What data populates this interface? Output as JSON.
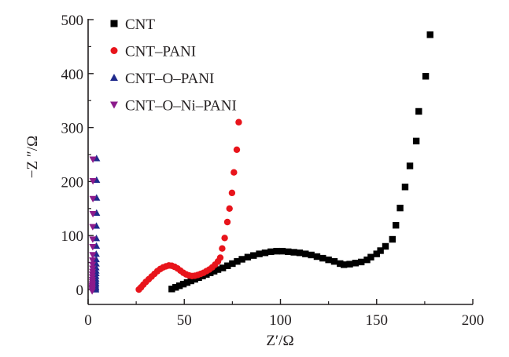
{
  "chart_data": {
    "type": "scatter",
    "title": "",
    "xlabel": "Z′/Ω",
    "ylabel": "−Z ″/Ω",
    "xlim": [
      0,
      200
    ],
    "ylim": [
      -15,
      500
    ],
    "xticks": [
      0,
      50,
      100,
      150,
      200
    ],
    "xtick_labels": [
      "0",
      "50",
      "100",
      "150",
      "200"
    ],
    "yticks": [
      0,
      100,
      200,
      300,
      400,
      500
    ],
    "ytick_labels": [
      "0",
      "100",
      "200",
      "300",
      "400",
      "500"
    ],
    "grid": false,
    "legend_position": "top-left",
    "series": [
      {
        "name": "CNT",
        "marker": "square",
        "color": "#000000",
        "x": [
          43.5,
          45.5,
          47.5,
          49.5,
          51.5,
          53.5,
          55.5,
          57.5,
          59.5,
          61.5,
          63.5,
          65.5,
          67.5,
          70,
          72.5,
          75,
          77.5,
          80,
          83,
          86,
          89,
          92,
          95,
          98,
          101,
          104,
          107,
          110,
          113,
          116,
          119,
          122,
          125,
          128,
          131,
          133,
          136,
          139,
          142,
          145,
          147,
          150,
          152,
          154.6,
          158.2,
          160,
          162.2,
          164.8,
          167.3,
          170.6,
          171.9,
          175.5,
          177.8
        ],
        "y": [
          1,
          4,
          7,
          10,
          13,
          16,
          19,
          22,
          25,
          28,
          31,
          34,
          37,
          40,
          44,
          48,
          52,
          56,
          60,
          63,
          66,
          68,
          70,
          71,
          71,
          70,
          69,
          68,
          66,
          64,
          61,
          58,
          55,
          52,
          48,
          46,
          47,
          49,
          51,
          55,
          60,
          66,
          72,
          80,
          93,
          119,
          151,
          190,
          229,
          275,
          330,
          395,
          472
        ]
      },
      {
        "name": "CNT–PANI",
        "marker": "circle",
        "color": "#e8141b",
        "x": [
          26.4,
          27.5,
          28.7,
          30,
          31.5,
          33,
          34.5,
          36,
          37.5,
          39,
          40.5,
          42,
          43.5,
          45,
          46.5,
          48,
          49.5,
          51,
          52.5,
          54,
          55.5,
          57,
          58.5,
          60,
          61.5,
          63,
          64.5,
          66,
          67.5,
          68.7,
          69.7,
          71,
          72.4,
          73.5,
          74.8,
          75.8,
          77.3,
          78.3
        ],
        "y": [
          0,
          4,
          9,
          14,
          19,
          24,
          29,
          34,
          38,
          41,
          43,
          44.5,
          44,
          42,
          39,
          35,
          31,
          28,
          26,
          25,
          25.5,
          27,
          29,
          31,
          34,
          37,
          41,
          46,
          52,
          59,
          76,
          95.5,
          125,
          150,
          179,
          217,
          259,
          310
        ]
      },
      {
        "name": "CNT–O–PANI",
        "marker": "triangle-up",
        "color": "#1f2a8c",
        "x": [
          4.4,
          4.4,
          4.4,
          4.4,
          4.3,
          4.3,
          4.3,
          4.2,
          4.2,
          4.2,
          4.1,
          4.1,
          4.1,
          4.0,
          4.0,
          4.0,
          4.0,
          3.9,
          3.9,
          3.9,
          3.9,
          3.9
        ],
        "y": [
          243,
          203,
          170,
          142,
          118,
          95,
          81,
          66,
          56,
          48,
          41,
          35,
          30,
          25,
          20,
          16,
          12,
          9,
          6,
          4,
          2,
          0
        ]
      },
      {
        "name": "CNT–O–Ni–PANI",
        "marker": "triangle-down",
        "color": "#8b1a8b",
        "x": [
          2.5,
          2.5,
          2.5,
          2.5,
          2.4,
          2.4,
          2.4,
          2.4,
          2.3,
          2.3,
          2.3,
          2.3,
          2.2,
          2.2,
          2.2,
          2.2,
          2.2,
          2.1,
          2.1,
          2.1,
          2.1,
          2.1
        ],
        "y": [
          241,
          201,
          168,
          140,
          116,
          93,
          79,
          64,
          54,
          46,
          39,
          33,
          28,
          23,
          18,
          14,
          10,
          7,
          4,
          2,
          0,
          -3
        ]
      }
    ]
  }
}
